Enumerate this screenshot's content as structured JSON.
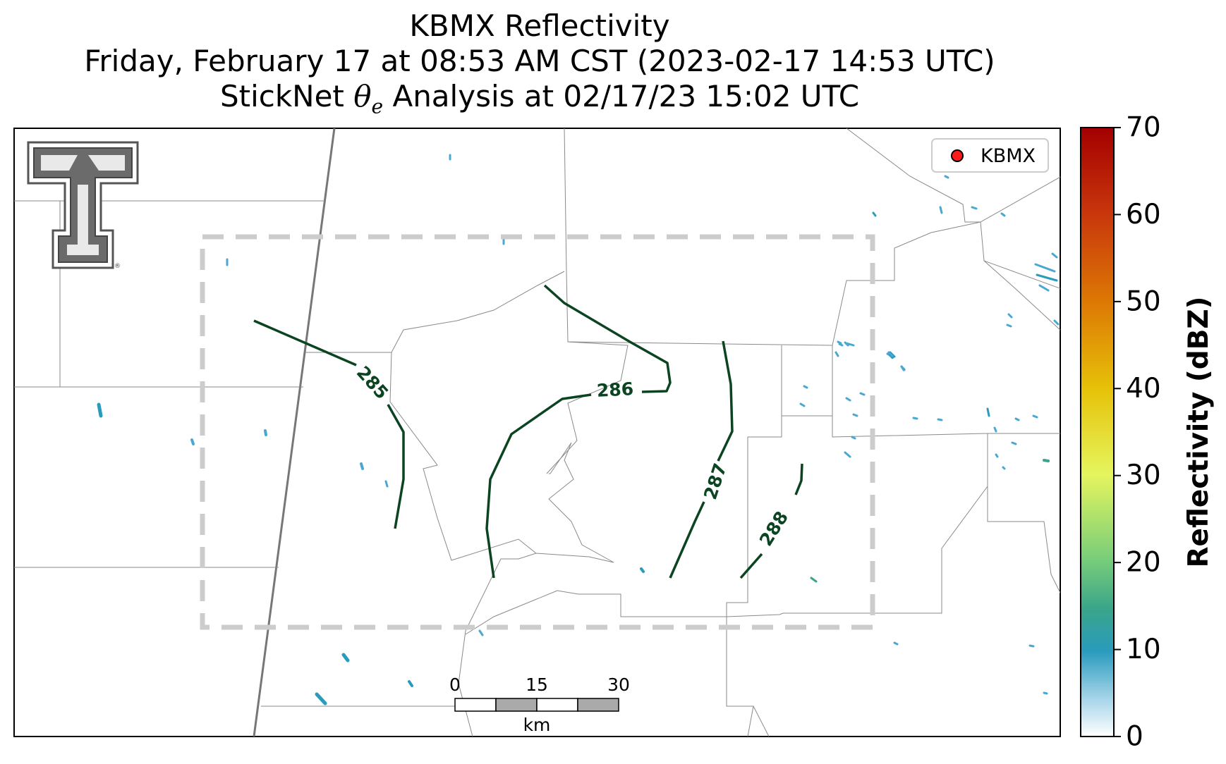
{
  "title": {
    "line1": "KBMX Reflectivity",
    "line2": "Friday, February 17 at 08:53 AM CST (2023-02-17 14:53 UTC)",
    "line3_prefix": "StickNet ",
    "line3_symbol": "θ",
    "line3_subscript": "e",
    "line3_suffix": " Analysis at 02/17/23 15:02 UTC"
  },
  "logo": {
    "name": "texas-tech-double-t-logo",
    "mark": "®"
  },
  "legend": {
    "label": "KBMX",
    "marker_color": "#ff1a1a"
  },
  "contours": {
    "color": "#0b4420",
    "levels": [
      "285",
      "286",
      "287",
      "288"
    ]
  },
  "scale_bar": {
    "ticks": [
      "0",
      "15",
      "30"
    ],
    "unit": "km"
  },
  "colorbar": {
    "label": "Reflectivity (dBZ)",
    "ticks": [
      "0",
      "10",
      "20",
      "30",
      "40",
      "50",
      "60",
      "70"
    ],
    "min": 0,
    "max": 70
  }
}
